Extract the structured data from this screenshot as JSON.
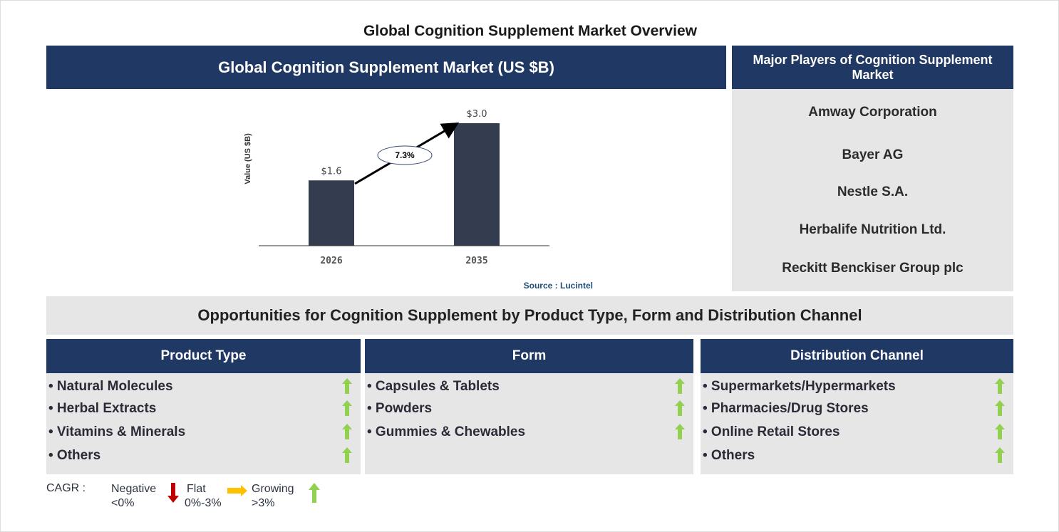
{
  "title": "Global Cognition Supplement Market Overview",
  "market_header": "Global Cognition Supplement Market (US $B)",
  "players_header": "Major Players of Cognition Supplement Market",
  "players": [
    "Amway Corporation",
    "Bayer AG",
    "Nestle S.A.",
    "Herbalife Nutrition Ltd.",
    "Reckitt Benckiser Group plc"
  ],
  "source": "Source : Lucintel",
  "chart_data": {
    "type": "bar",
    "categories": [
      "2026",
      "2035"
    ],
    "values": [
      1.6,
      3.0
    ],
    "data_labels": [
      "$1.6",
      "$3.0"
    ],
    "ylabel": "Value (US $B)",
    "ylim": [
      0,
      3
    ],
    "cagr_label": "7.3%",
    "bar_color": "#333d4f",
    "grid": false
  },
  "opportunities_title": "Opportunities for Cognition Supplement by Product Type, Form and Distribution Channel",
  "columns": [
    {
      "header": "Product Type",
      "items": [
        "• Natural Molecules",
        "• Herbal Extracts",
        "• Vitamins & Minerals",
        "• Others"
      ]
    },
    {
      "header": "Form",
      "items": [
        "• Capsules & Tablets",
        "• Powders",
        "• Gummies & Chewables"
      ]
    },
    {
      "header": "Distribution Channel",
      "items": [
        "• Supermarkets/Hypermarkets",
        "• Pharmacies/Drug Stores",
        "• Online Retail Stores",
        "• Others"
      ]
    }
  ],
  "trend_icon": "green-up-arrow",
  "legend": {
    "label": "CAGR :",
    "negative": [
      "Negative",
      "<0%"
    ],
    "flat": [
      "Flat",
      "0%-3%"
    ],
    "growing": [
      "Growing",
      ">3%"
    ],
    "colors": {
      "negative": "#c00000",
      "flat": "#ffc000",
      "growing": "#92d050"
    }
  }
}
